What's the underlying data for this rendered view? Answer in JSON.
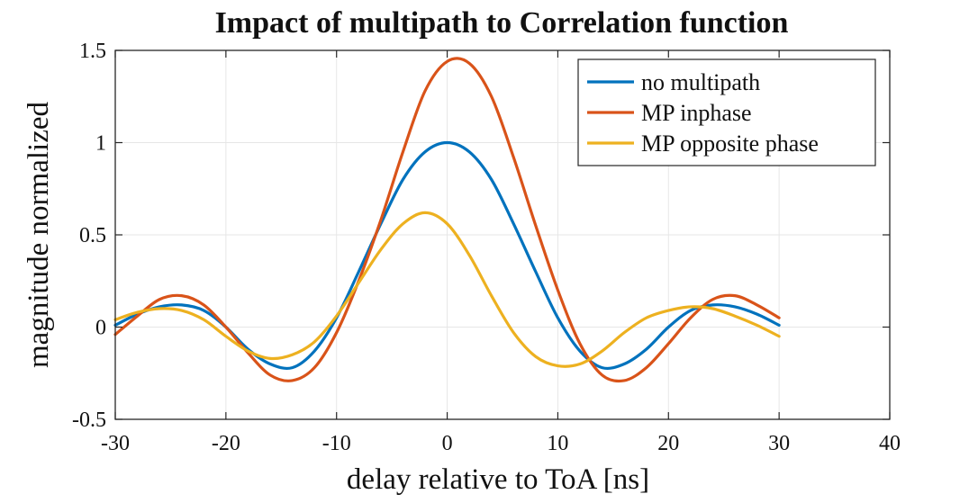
{
  "chart_data": {
    "type": "line",
    "title": "Impact of multipath to Correlation function",
    "xlabel": "delay relative to ToA [ns]",
    "ylabel": "magnitude normalized",
    "xlim": [
      -30,
      40
    ],
    "ylim": [
      -0.5,
      1.5
    ],
    "xticks": [
      -30,
      -20,
      -10,
      0,
      10,
      20,
      30,
      40
    ],
    "xtick_labels": [
      "-30",
      "-20",
      "-10",
      "0",
      "10",
      "20",
      "30",
      "40"
    ],
    "yticks": [
      -0.5,
      0,
      0.5,
      1,
      1.5
    ],
    "ytick_labels": [
      "-0.5",
      "0",
      "0.5",
      "1",
      "1.5"
    ],
    "grid": true,
    "legend_position": "top-right",
    "series": [
      {
        "name": "no multipath",
        "color": "#0072BD",
        "x": [
          -30,
          -28,
          -26,
          -24,
          -22,
          -20,
          -18,
          -16,
          -14,
          -12,
          -10,
          -8,
          -6,
          -4,
          -2,
          0,
          2,
          4,
          6,
          8,
          10,
          12,
          14,
          16,
          18,
          20,
          22,
          24,
          26,
          28,
          30
        ],
        "y": [
          0.01,
          0.07,
          0.11,
          0.12,
          0.09,
          0.0,
          -0.12,
          -0.2,
          -0.22,
          -0.13,
          0.05,
          0.3,
          0.56,
          0.8,
          0.95,
          1.0,
          0.95,
          0.8,
          0.56,
          0.3,
          0.05,
          -0.13,
          -0.22,
          -0.2,
          -0.12,
          0.0,
          0.09,
          0.12,
          0.11,
          0.07,
          0.01
        ]
      },
      {
        "name": "MP inphase",
        "color": "#D95319",
        "x": [
          -30,
          -28,
          -26,
          -24,
          -22,
          -20,
          -18,
          -16,
          -14,
          -12,
          -10,
          -8,
          -6,
          -4,
          -2,
          0,
          2,
          4,
          6,
          8,
          10,
          12,
          14,
          16,
          18,
          20,
          22,
          24,
          26,
          28,
          30
        ],
        "y": [
          -0.04,
          0.06,
          0.15,
          0.17,
          0.12,
          0.0,
          -0.14,
          -0.26,
          -0.29,
          -0.22,
          -0.03,
          0.25,
          0.58,
          0.95,
          1.28,
          1.44,
          1.43,
          1.25,
          0.92,
          0.55,
          0.2,
          -0.09,
          -0.26,
          -0.29,
          -0.22,
          -0.09,
          0.05,
          0.15,
          0.17,
          0.12,
          0.05
        ]
      },
      {
        "name": "MP opposite phase",
        "color": "#EDB120",
        "x": [
          -30,
          -28,
          -26,
          -24,
          -22,
          -20,
          -18,
          -16,
          -14,
          -12,
          -10,
          -8,
          -6,
          -4,
          -2,
          0,
          2,
          4,
          6,
          8,
          10,
          12,
          14,
          16,
          18,
          20,
          22,
          24,
          26,
          28,
          30
        ],
        "y": [
          0.04,
          0.08,
          0.1,
          0.09,
          0.04,
          -0.05,
          -0.13,
          -0.17,
          -0.15,
          -0.08,
          0.06,
          0.24,
          0.42,
          0.56,
          0.62,
          0.56,
          0.39,
          0.17,
          -0.03,
          -0.16,
          -0.21,
          -0.2,
          -0.13,
          -0.03,
          0.05,
          0.09,
          0.11,
          0.1,
          0.06,
          0.01,
          -0.05
        ]
      }
    ]
  }
}
